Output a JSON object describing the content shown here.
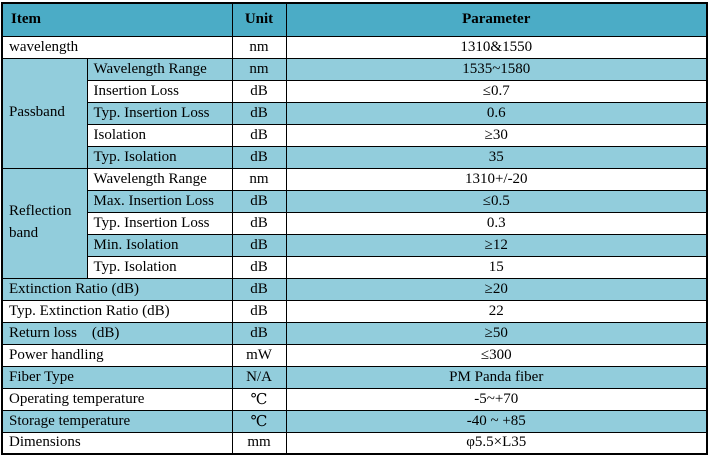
{
  "table": {
    "title": "Optical component specification table",
    "colors": {
      "header_bg": "#4BACC6",
      "band_bg": "#92CDDC",
      "border": "#000000",
      "text": "#000000"
    },
    "columns": [
      "Item",
      "Unit",
      "Parameter"
    ],
    "rows": [
      {
        "item": "wavelength",
        "span": 2,
        "unit": "nm",
        "param": "1310&1550",
        "shade": false
      },
      {
        "group": {
          "label": "Passband",
          "rowspan": 5,
          "shade": true
        },
        "item": "Wavelength Range",
        "span": 1,
        "unit": "nm",
        "param": "1535~1580",
        "shade": true
      },
      {
        "item": "Insertion Loss",
        "span": 1,
        "unit": "dB",
        "param": "≤0.7",
        "shade": false
      },
      {
        "item": "Typ. Insertion Loss",
        "span": 1,
        "unit": "dB",
        "param": "0.6",
        "shade": true
      },
      {
        "item": "Isolation",
        "span": 1,
        "unit": "dB",
        "param": "≥30",
        "shade": false
      },
      {
        "item": "Typ. Isolation",
        "span": 1,
        "unit": "dB",
        "param": "35",
        "shade": true
      },
      {
        "group": {
          "label": "Reflection band",
          "rowspan": 5,
          "shade": true
        },
        "item": "Wavelength Range",
        "span": 1,
        "unit": "nm",
        "param": "1310+/-20",
        "shade": false
      },
      {
        "item": "Max. Insertion Loss",
        "span": 1,
        "unit": "dB",
        "param": "≤0.5",
        "shade": true
      },
      {
        "item": "Typ. Insertion Loss",
        "span": 1,
        "unit": "dB",
        "param": "0.3",
        "shade": false
      },
      {
        "item": "Min. Isolation",
        "span": 1,
        "unit": "dB",
        "param": "≥12",
        "shade": true
      },
      {
        "item": "Typ. Isolation",
        "span": 1,
        "unit": "dB",
        "param": "15",
        "shade": false
      },
      {
        "item": "Extinction Ratio (dB)",
        "span": 2,
        "unit": "dB",
        "param": "≥20",
        "shade": true
      },
      {
        "item": "Typ. Extinction Ratio (dB)",
        "span": 2,
        "unit": "dB",
        "param": "22",
        "shade": false
      },
      {
        "item": "Return loss    (dB)",
        "span": 2,
        "unit": "dB",
        "param": "≥50",
        "shade": true
      },
      {
        "item": "Power handling",
        "span": 2,
        "unit": "mW",
        "param": "≤300",
        "shade": false
      },
      {
        "item": "Fiber Type",
        "span": 2,
        "unit": "N/A",
        "param": "PM Panda fiber",
        "shade": true
      },
      {
        "item": "Operating temperature",
        "span": 2,
        "unit": "℃",
        "param": "-5~+70",
        "shade": false
      },
      {
        "item": "Storage temperature",
        "span": 2,
        "unit": "℃",
        "param": "-40 ~ +85",
        "shade": true
      },
      {
        "item": "Dimensions",
        "span": 2,
        "unit": "mm",
        "param": "φ5.5×L35",
        "shade": false
      }
    ]
  }
}
